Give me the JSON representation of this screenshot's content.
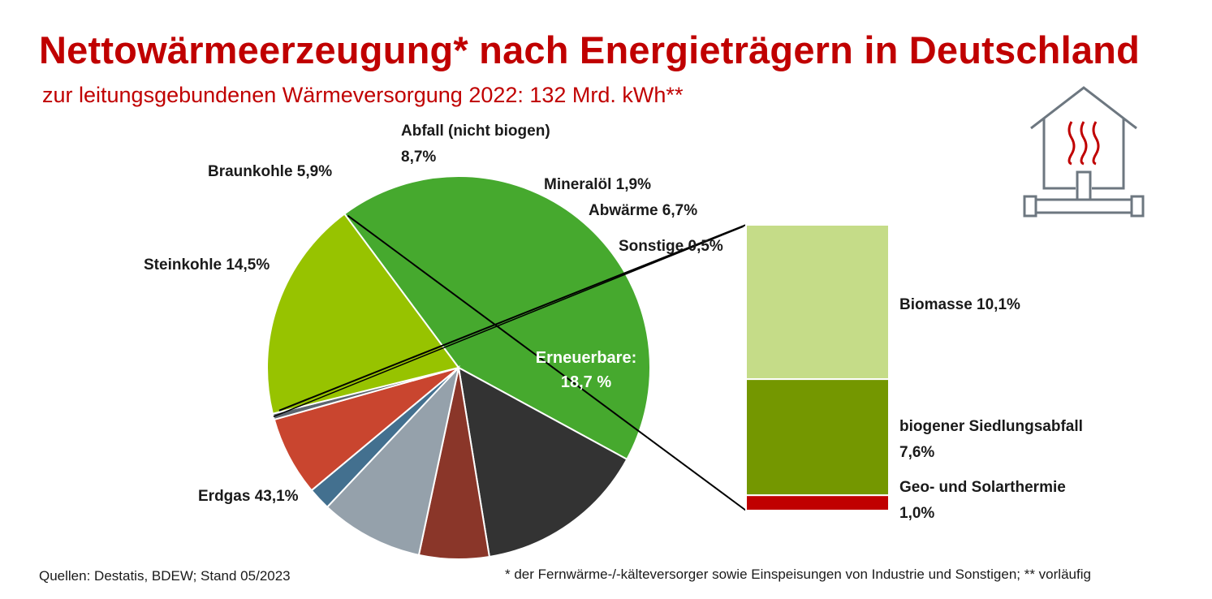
{
  "title": "Nettowärmeerzeugung* nach Energieträgern in Deutschland",
  "subtitle": "zur leitungsgebundenen Wärmeversorgung 2022: 132 Mrd. kWh**",
  "chart_data": [
    {
      "type": "pie",
      "slices": [
        {
          "label": "Erdgas",
          "value": 43.1,
          "value_label": "43,1%",
          "color": "#46a92e"
        },
        {
          "label": "Steinkohle",
          "value": 14.5,
          "value_label": "14,5%",
          "color": "#333333"
        },
        {
          "label": "Braunkohle",
          "value": 5.9,
          "value_label": "5,9%",
          "color": "#8a3629"
        },
        {
          "label": "Abfall (nicht biogen)",
          "value": 8.7,
          "value_label": "8,7%",
          "color": "#95a1ab"
        },
        {
          "label": "Mineralöl",
          "value": 1.9,
          "value_label": "1,9%",
          "color": "#43708f"
        },
        {
          "label": "Abwärme",
          "value": 6.7,
          "value_label": "6,7%",
          "color": "#c9452f"
        },
        {
          "label": "Sonstige",
          "value": 0.5,
          "value_label": "0,5%",
          "color": "#5d6670"
        },
        {
          "label": "Erneuerbare:",
          "value": 18.7,
          "value_label": "18,7 %",
          "color": "#97c300"
        }
      ]
    },
    {
      "type": "bar",
      "stacked": true,
      "parent": "Erneuerbare:",
      "segments": [
        {
          "label": "Biomasse",
          "value": 10.1,
          "value_label": "10,1%",
          "color": "#c5dc88"
        },
        {
          "label": "biogener Siedlungsabfall",
          "value": 7.6,
          "value_label": "7,6%",
          "color": "#749700"
        },
        {
          "label": "Geo- und Solarthermie",
          "value": 1.0,
          "value_label": "1,0%",
          "color": "#c00000"
        }
      ]
    }
  ],
  "icon": {
    "name": "house-heating-icon",
    "stroke_color": "#6d7780",
    "heat_color": "#c00000"
  },
  "footer": {
    "sources": "Quellen: Destatis, BDEW; Stand 05/2023",
    "note": "* der Fernwärme-/-kälteversorger sowie Einspeisungen von Industrie und Sonstigen; ** vorläufig"
  }
}
